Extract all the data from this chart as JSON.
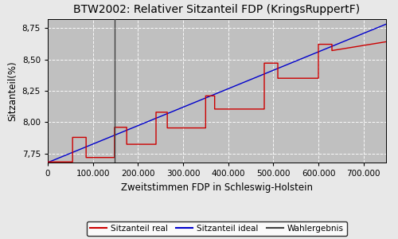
{
  "title": "BTW2002: Relativer Sitzanteil FDP (KringsRuppertF)",
  "xlabel": "Zweitstimmen FDP in Schleswig-Holstein",
  "ylabel": "Sitzanteil(%)",
  "xlim": [
    0,
    750000
  ],
  "ylim": [
    7.68,
    8.82
  ],
  "yticks": [
    7.75,
    8.0,
    8.25,
    8.5,
    8.75
  ],
  "xticks": [
    0,
    100000,
    200000,
    300000,
    400000,
    500000,
    600000,
    700000
  ],
  "wahlergebnis_x": 148000,
  "bg_color": "#c0c0c0",
  "fig_color": "#e8e8e8",
  "line_real_color": "#cc0000",
  "line_ideal_color": "#0000cc",
  "line_wahl_color": "#404040",
  "legend_labels": [
    "Sitzanteil real",
    "Sitzanteil ideal",
    "Wahlergebnis"
  ],
  "title_fontsize": 10,
  "axis_fontsize": 8.5,
  "tick_fontsize": 7.5,
  "ideal_start_y": 7.68,
  "ideal_end_y": 8.78,
  "real_steps": [
    [
      0,
      7.685
    ],
    [
      55000,
      7.685
    ],
    [
      55000,
      7.88
    ],
    [
      85000,
      7.88
    ],
    [
      85000,
      7.72
    ],
    [
      148000,
      7.72
    ],
    [
      148000,
      7.96
    ],
    [
      175000,
      7.96
    ],
    [
      175000,
      7.825
    ],
    [
      240000,
      7.825
    ],
    [
      240000,
      8.08
    ],
    [
      265000,
      8.08
    ],
    [
      265000,
      7.955
    ],
    [
      350000,
      7.955
    ],
    [
      350000,
      8.21
    ],
    [
      370000,
      8.21
    ],
    [
      370000,
      8.105
    ],
    [
      480000,
      8.105
    ],
    [
      480000,
      8.47
    ],
    [
      510000,
      8.47
    ],
    [
      510000,
      8.35
    ],
    [
      600000,
      8.35
    ],
    [
      600000,
      8.62
    ],
    [
      630000,
      8.62
    ],
    [
      630000,
      8.57
    ],
    [
      750000,
      8.64
    ]
  ]
}
